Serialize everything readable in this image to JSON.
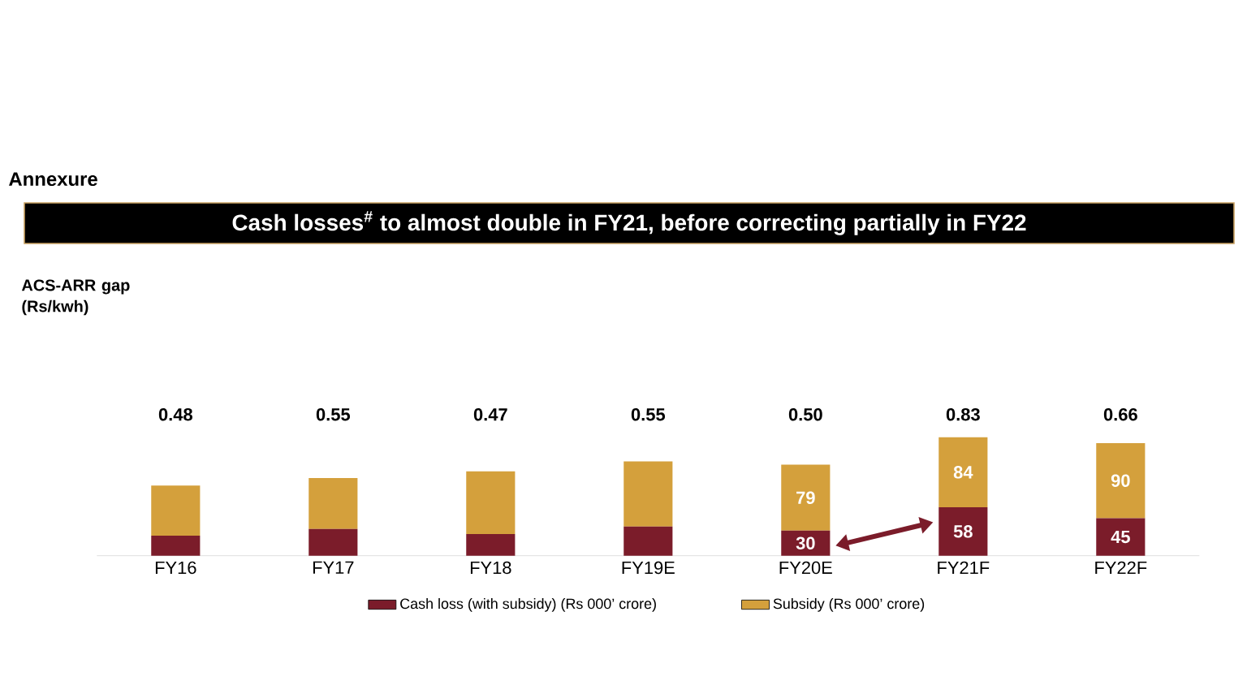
{
  "chart_data": {
    "type": "bar",
    "stacked": true,
    "legend": "bottom",
    "title": "Cash losses$^{#}$ to almost double in FY21, before correcting partially in FY22",
    "categories": [
      "FY16",
      "FY17",
      "FY18",
      "FY19E",
      "FY20E",
      "FY21F",
      "FY22F"
    ],
    "series": [
      {
        "name": "Cash loss (with subsidy)   (Rs 000’ crore)",
        "color": "#7b1c2a",
        "values": [
          24,
          32,
          26,
          35,
          30,
          58,
          45
        ],
        "value_labels": [
          null,
          null,
          null,
          null,
          "30",
          "58",
          "45"
        ]
      },
      {
        "name": "Subsidy   (Rs 000’ crore)",
        "color": "#d4a03c",
        "values": [
          60,
          61,
          75,
          78,
          79,
          84,
          90
        ],
        "value_labels": [
          null,
          null,
          null,
          null,
          "79",
          "84",
          "90"
        ]
      }
    ],
    "annotations": [
      "Annexure",
      "ACS-ARR gap (Rs/kwh)",
      "0.48",
      "0.55",
      "0.47",
      "0.55",
      "0.50",
      "0.83",
      "0.66"
    ]
  }
}
